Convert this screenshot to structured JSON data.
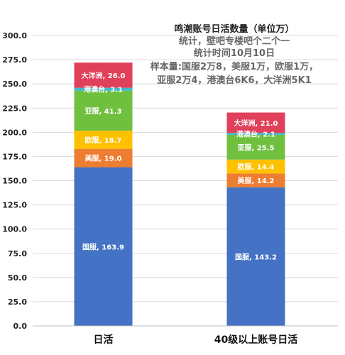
{
  "chart_data": {
    "type": "bar",
    "stacked": true,
    "title": "鸣潮账号日活数量（单位万）",
    "annotations": [
      "统计，壁吧专楼吧个二个一",
      "统计时间10月10日",
      "样本量:国服2万8，美服1万，欧服1万，",
      "亚服2万4，港澳台6K6，大洋洲5K1"
    ],
    "categories": [
      "日活",
      "40级以上账号日活"
    ],
    "ylim": [
      0,
      300
    ],
    "yticks": [
      "0.0",
      "25.0",
      "50.0",
      "75.0",
      "100.0",
      "125.0",
      "150.0",
      "175.0",
      "200.0",
      "225.0",
      "250.0",
      "275.0",
      "300.0"
    ],
    "grid": true,
    "series": [
      {
        "name": "国服",
        "color": "#4472c4",
        "values": [
          163.9,
          143.2
        ],
        "labels": [
          "国服, 163.9",
          "国服, 143.2"
        ]
      },
      {
        "name": "美服",
        "color": "#ed7d31",
        "values": [
          19.0,
          14.2
        ],
        "labels": [
          "美服, 19.0",
          "美服, 14.2"
        ]
      },
      {
        "name": "欧服",
        "color": "#ffc000",
        "values": [
          18.7,
          14.4
        ],
        "labels": [
          "欧服, 18.7",
          "欧服, 14.4"
        ]
      },
      {
        "name": "亚服",
        "color": "#70c040",
        "values": [
          41.3,
          25.5
        ],
        "labels": [
          "亚服, 41.3",
          "亚服, 25.5"
        ]
      },
      {
        "name": "港澳台",
        "color": "#44b8cc",
        "values": [
          3.1,
          2.1
        ],
        "labels": [
          "港澳台, 3.1",
          "港澳台, 2.1"
        ]
      },
      {
        "name": "大洋洲",
        "color": "#e0405a",
        "values": [
          26.0,
          21.0
        ],
        "labels": [
          "大洋洲, 26.0",
          "大洋洲, 21.0"
        ]
      }
    ]
  }
}
